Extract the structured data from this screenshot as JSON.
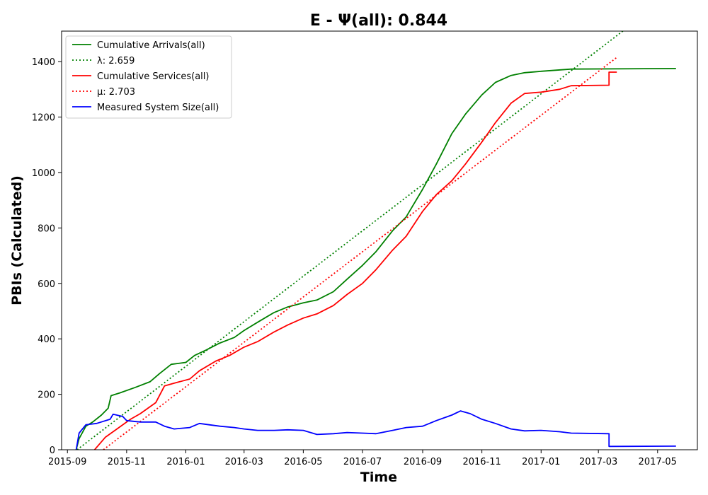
{
  "chart_data": {
    "type": "line",
    "title": "E -  Ψ(all): 0.844",
    "xlabel": "Time",
    "ylabel": "PBIs (Calculated)",
    "xlim": [
      "2015-08-26",
      "2017-06-11"
    ],
    "ylim": [
      0,
      1510
    ],
    "x_ticks": [
      {
        "date": "2015-09-01",
        "label": "2015-09"
      },
      {
        "date": "2015-11-01",
        "label": "2015-11"
      },
      {
        "date": "2016-01-01",
        "label": "2016-01"
      },
      {
        "date": "2016-03-01",
        "label": "2016-03"
      },
      {
        "date": "2016-05-01",
        "label": "2016-05"
      },
      {
        "date": "2016-07-01",
        "label": "2016-07"
      },
      {
        "date": "2016-09-01",
        "label": "2016-09"
      },
      {
        "date": "2016-11-01",
        "label": "2016-11"
      },
      {
        "date": "2017-01-01",
        "label": "2017-01"
      },
      {
        "date": "2017-03-01",
        "label": "2017-03"
      },
      {
        "date": "2017-05-01",
        "label": "2017-05"
      }
    ],
    "y_ticks": [
      0,
      200,
      400,
      600,
      800,
      1000,
      1200,
      1400
    ],
    "grid": false,
    "legend_position": "top-left",
    "series": [
      {
        "name": "Cumulative Arrivals(all)",
        "color": "#008000",
        "style": "solid",
        "points": [
          [
            "2015-09-10",
            0
          ],
          [
            "2015-09-13",
            40
          ],
          [
            "2015-09-20",
            85
          ],
          [
            "2015-09-27",
            100
          ],
          [
            "2015-10-06",
            125
          ],
          [
            "2015-10-13",
            150
          ],
          [
            "2015-10-16",
            195
          ],
          [
            "2015-10-25",
            205
          ],
          [
            "2015-11-10",
            225
          ],
          [
            "2015-11-25",
            245
          ],
          [
            "2015-12-05",
            275
          ],
          [
            "2015-12-17",
            308
          ],
          [
            "2016-01-01",
            315
          ],
          [
            "2016-01-10",
            340
          ],
          [
            "2016-01-22",
            360
          ],
          [
            "2016-02-05",
            385
          ],
          [
            "2016-02-20",
            405
          ],
          [
            "2016-03-01",
            430
          ],
          [
            "2016-03-15",
            460
          ],
          [
            "2016-04-01",
            495
          ],
          [
            "2016-04-15",
            515
          ],
          [
            "2016-05-01",
            530
          ],
          [
            "2016-05-15",
            540
          ],
          [
            "2016-06-01",
            570
          ],
          [
            "2016-06-15",
            615
          ],
          [
            "2016-07-01",
            665
          ],
          [
            "2016-07-15",
            715
          ],
          [
            "2016-08-01",
            790
          ],
          [
            "2016-08-15",
            840
          ],
          [
            "2016-09-01",
            940
          ],
          [
            "2016-09-15",
            1030
          ],
          [
            "2016-10-01",
            1140
          ],
          [
            "2016-10-15",
            1210
          ],
          [
            "2016-11-01",
            1280
          ],
          [
            "2016-11-15",
            1325
          ],
          [
            "2016-12-01",
            1350
          ],
          [
            "2016-12-15",
            1360
          ],
          [
            "2017-01-01",
            1365
          ],
          [
            "2017-02-01",
            1373
          ],
          [
            "2017-05-20",
            1375
          ]
        ]
      },
      {
        "name": "λ: 2.659",
        "color": "#008000",
        "style": "dotted",
        "points": [
          [
            "2015-09-11",
            0
          ],
          [
            "2017-03-28",
            1515
          ]
        ]
      },
      {
        "name": "Cumulative Services(all)",
        "color": "#ff0000",
        "style": "solid",
        "points": [
          [
            "2015-09-29",
            0
          ],
          [
            "2015-10-10",
            45
          ],
          [
            "2015-10-20",
            70
          ],
          [
            "2015-11-05",
            110
          ],
          [
            "2015-11-15",
            130
          ],
          [
            "2015-12-01",
            170
          ],
          [
            "2015-12-10",
            230
          ],
          [
            "2015-12-20",
            240
          ],
          [
            "2016-01-05",
            255
          ],
          [
            "2016-01-15",
            285
          ],
          [
            "2016-02-01",
            320
          ],
          [
            "2016-02-15",
            340
          ],
          [
            "2016-03-01",
            370
          ],
          [
            "2016-03-15",
            390
          ],
          [
            "2016-04-01",
            425
          ],
          [
            "2016-04-15",
            450
          ],
          [
            "2016-05-01",
            475
          ],
          [
            "2016-05-15",
            490
          ],
          [
            "2016-06-01",
            520
          ],
          [
            "2016-06-15",
            560
          ],
          [
            "2016-07-01",
            600
          ],
          [
            "2016-07-15",
            650
          ],
          [
            "2016-08-01",
            720
          ],
          [
            "2016-08-15",
            770
          ],
          [
            "2016-09-01",
            860
          ],
          [
            "2016-09-15",
            920
          ],
          [
            "2016-10-01",
            970
          ],
          [
            "2016-10-15",
            1030
          ],
          [
            "2016-11-01",
            1110
          ],
          [
            "2016-11-15",
            1180
          ],
          [
            "2016-12-01",
            1250
          ],
          [
            "2016-12-15",
            1285
          ],
          [
            "2017-01-01",
            1290
          ],
          [
            "2017-01-20",
            1300
          ],
          [
            "2017-02-01",
            1313
          ],
          [
            "2017-03-12",
            1315
          ],
          [
            "2017-03-12",
            1362
          ],
          [
            "2017-03-20",
            1362
          ]
        ]
      },
      {
        "name": "μ: 2.703",
        "color": "#ff0000",
        "style": "dotted",
        "points": [
          [
            "2015-10-08",
            0
          ],
          [
            "2017-03-20",
            1415
          ]
        ]
      },
      {
        "name": "Measured System Size(all)",
        "color": "#0000ff",
        "style": "solid",
        "points": [
          [
            "2015-09-10",
            0
          ],
          [
            "2015-09-13",
            60
          ],
          [
            "2015-09-20",
            90
          ],
          [
            "2015-10-01",
            95
          ],
          [
            "2015-10-15",
            110
          ],
          [
            "2015-10-18",
            128
          ],
          [
            "2015-10-28",
            120
          ],
          [
            "2015-11-01",
            105
          ],
          [
            "2015-11-15",
            100
          ],
          [
            "2015-12-01",
            100
          ],
          [
            "2015-12-10",
            85
          ],
          [
            "2015-12-20",
            75
          ],
          [
            "2016-01-05",
            80
          ],
          [
            "2016-01-15",
            95
          ],
          [
            "2016-01-25",
            90
          ],
          [
            "2016-02-05",
            85
          ],
          [
            "2016-02-20",
            80
          ],
          [
            "2016-03-01",
            75
          ],
          [
            "2016-03-15",
            70
          ],
          [
            "2016-04-01",
            70
          ],
          [
            "2016-04-15",
            72
          ],
          [
            "2016-05-01",
            70
          ],
          [
            "2016-05-15",
            55
          ],
          [
            "2016-06-01",
            58
          ],
          [
            "2016-06-15",
            62
          ],
          [
            "2016-07-01",
            60
          ],
          [
            "2016-07-15",
            58
          ],
          [
            "2016-08-01",
            70
          ],
          [
            "2016-08-15",
            80
          ],
          [
            "2016-09-01",
            85
          ],
          [
            "2016-09-15",
            105
          ],
          [
            "2016-10-01",
            125
          ],
          [
            "2016-10-10",
            140
          ],
          [
            "2016-10-20",
            130
          ],
          [
            "2016-11-01",
            110
          ],
          [
            "2016-11-15",
            95
          ],
          [
            "2016-12-01",
            75
          ],
          [
            "2016-12-15",
            68
          ],
          [
            "2017-01-01",
            70
          ],
          [
            "2017-01-20",
            65
          ],
          [
            "2017-02-01",
            60
          ],
          [
            "2017-03-12",
            58
          ],
          [
            "2017-03-12",
            12
          ],
          [
            "2017-05-20",
            13
          ]
        ]
      }
    ]
  }
}
